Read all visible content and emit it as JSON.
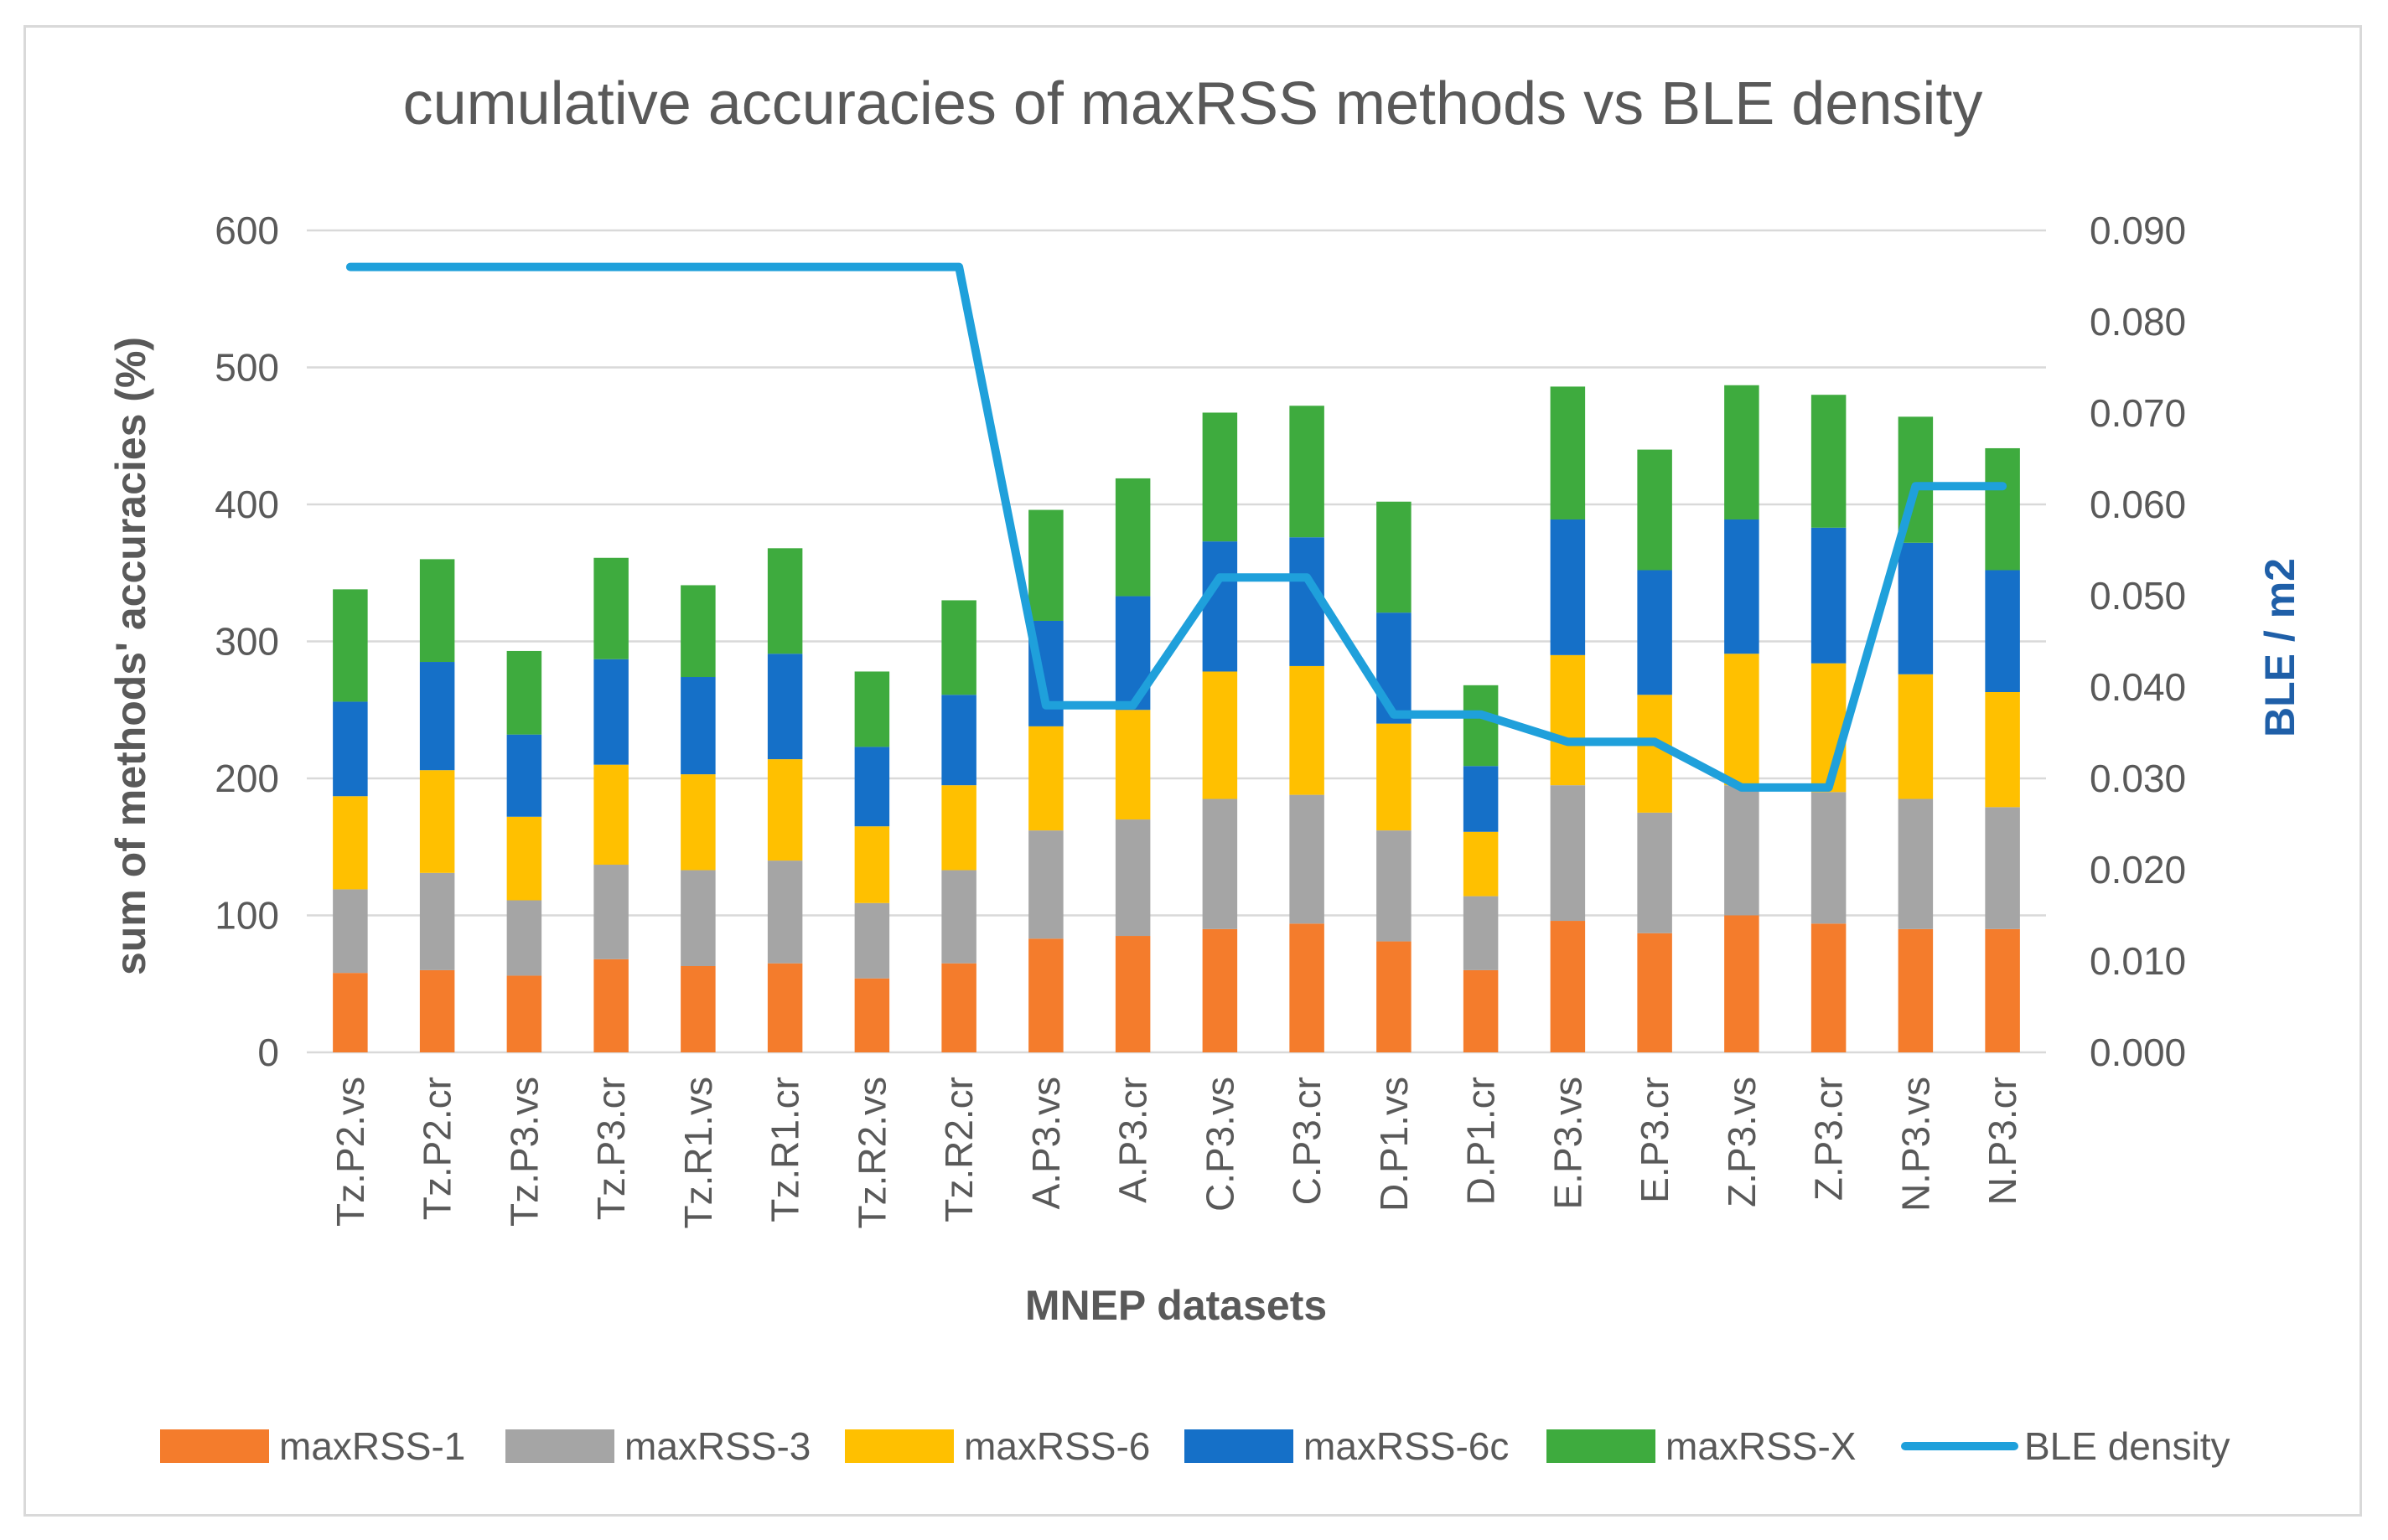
{
  "chart_data": {
    "type": "bar",
    "stacked": true,
    "title": "cumulative accuracies of maxRSS methods vs BLE density",
    "xlabel": "MNEP datasets",
    "ylabel": "sum of methods' accuracies (%)",
    "y2label": "BLE / m2",
    "ylim": [
      0,
      600
    ],
    "y2lim": [
      0,
      0.09
    ],
    "yticks": [
      "0",
      "100",
      "200",
      "300",
      "400",
      "500",
      "600"
    ],
    "y2ticks": [
      "0.000",
      "0.010",
      "0.020",
      "0.030",
      "0.040",
      "0.050",
      "0.060",
      "0.070",
      "0.080",
      "0.090"
    ],
    "grid": true,
    "legend_position": "bottom",
    "categories": [
      "Tz.P2.vs",
      "Tz.P2.cr",
      "Tz.P3.vs",
      "Tz.P3.cr",
      "Tz.R1.vs",
      "Tz.R1.cr",
      "Tz.R2.vs",
      "Tz.R2.cr",
      "A.P3.vs",
      "A.P3.cr",
      "C.P3.vs",
      "C.P3.cr",
      "D.P1.vs",
      "D.P1.cr",
      "E.P3.vs",
      "E.P3.cr",
      "Z.P3.vs",
      "Z.P3.cr",
      "N.P3.vs",
      "N.P3.cr"
    ],
    "series": [
      {
        "name": "maxRSS-1",
        "color": "#f47c2c",
        "values": [
          58,
          60,
          56,
          68,
          63,
          65,
          54,
          65,
          83,
          85,
          90,
          94,
          81,
          60,
          96,
          87,
          100,
          94,
          90,
          90
        ]
      },
      {
        "name": "maxRSS-3",
        "color": "#a5a5a5",
        "values": [
          61,
          71,
          55,
          69,
          70,
          75,
          55,
          68,
          79,
          85,
          95,
          94,
          81,
          54,
          99,
          88,
          95,
          96,
          95,
          89
        ]
      },
      {
        "name": "maxRSS-6",
        "color": "#ffc000",
        "values": [
          68,
          75,
          61,
          73,
          70,
          74,
          56,
          62,
          76,
          80,
          93,
          94,
          78,
          47,
          95,
          86,
          96,
          94,
          91,
          84
        ]
      },
      {
        "name": "maxRSS-6c",
        "color": "#1570c8",
        "values": [
          69,
          79,
          60,
          77,
          71,
          77,
          58,
          66,
          77,
          83,
          95,
          94,
          81,
          48,
          99,
          91,
          98,
          99,
          96,
          89
        ]
      },
      {
        "name": "maxRSS-X",
        "color": "#3eab3e",
        "values": [
          82,
          75,
          61,
          74,
          67,
          77,
          55,
          69,
          81,
          86,
          94,
          96,
          81,
          59,
          97,
          88,
          98,
          97,
          92,
          89
        ]
      }
    ],
    "line_series": {
      "name": "BLE density",
      "color": "#1fa0db",
      "axis": "right",
      "values": [
        0.086,
        0.086,
        0.086,
        0.086,
        0.086,
        0.086,
        0.086,
        0.086,
        0.038,
        0.038,
        0.052,
        0.052,
        0.037,
        0.037,
        0.034,
        0.034,
        0.029,
        0.029,
        0.062,
        0.062
      ]
    },
    "y2label_color": "#1f5fa8"
  }
}
